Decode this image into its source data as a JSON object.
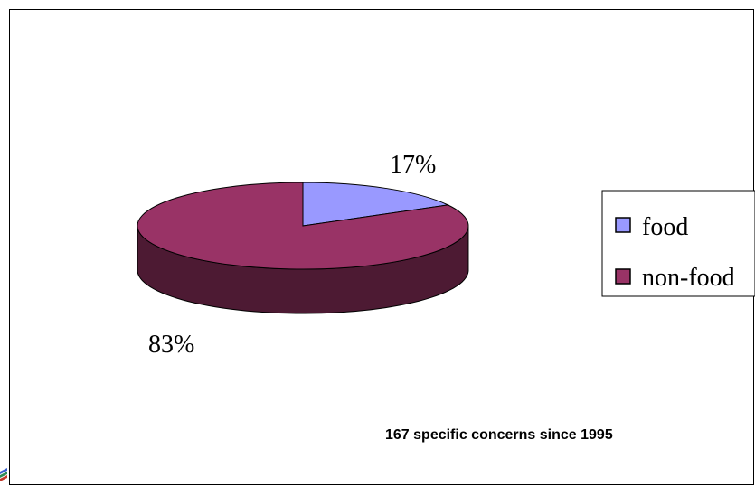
{
  "chart_data": {
    "type": "pie",
    "style": "3d",
    "categories": [
      "food",
      "non-food"
    ],
    "values": [
      17,
      83
    ],
    "labels": [
      "17%",
      "83%"
    ],
    "colors": [
      "#9999ff",
      "#993366"
    ],
    "side_colors": [
      "#4c4c80",
      "#4d1a33"
    ],
    "legend": {
      "placement": "right",
      "entries": [
        "food",
        "non-food"
      ]
    },
    "annotations": [
      "167 specific concerns since 1995"
    ]
  }
}
